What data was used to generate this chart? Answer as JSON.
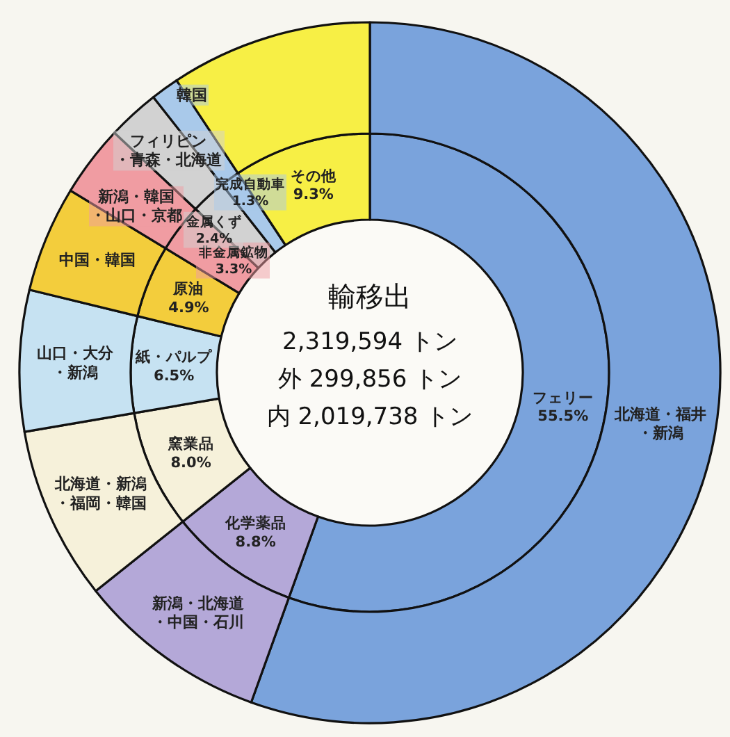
{
  "chart_data": [
    {
      "type": "donut",
      "annotations": [
        "輸移出",
        "2,319,594 トン",
        "外 299,856 トン",
        "内 2,019,738 トン"
      ],
      "categories": [
        "フェリー",
        "化学薬品",
        "窯業品",
        "紙・パルプ",
        "原油",
        "非金属鉱物",
        "金属くず",
        "完成自動車",
        "その他"
      ],
      "values": [
        55.5,
        8.8,
        8.0,
        6.5,
        4.9,
        3.3,
        2.4,
        1.3,
        9.3
      ],
      "colors": [
        "#7aa3dc",
        "#b4a8d8",
        "#f6f1da",
        "#c6e2f2",
        "#f3cd3c",
        "#f09ca2",
        "#d2d2d2",
        "#a9c9ea",
        "#f7ef45"
      ],
      "value_labels": [
        "55.5%",
        "8.8%",
        "8.0%",
        "6.5%",
        "4.9%",
        "3.3%",
        "2.4%",
        "1.3%",
        "9.3%"
      ]
    },
    {
      "type": "donut",
      "categories": [
        "北海道・福井・新潟",
        "新潟・北海道・中国・石川",
        "北海道・新潟・福岡・韓国",
        "山口・大分・新潟",
        "中国・韓国",
        "新潟・韓国・山口・京都",
        "フィリピン・青森・北海道",
        "韓国",
        null
      ],
      "values": [
        55.5,
        8.8,
        8.0,
        6.5,
        4.9,
        3.3,
        2.4,
        1.3,
        9.3
      ],
      "colors": [
        "#7aa3dc",
        "#b4a8d8",
        "#f6f1da",
        "#c6e2f2",
        "#f3cd3c",
        "#f09ca2",
        "#d2d2d2",
        "#a9c9ea",
        "#f7ef45"
      ]
    }
  ]
}
